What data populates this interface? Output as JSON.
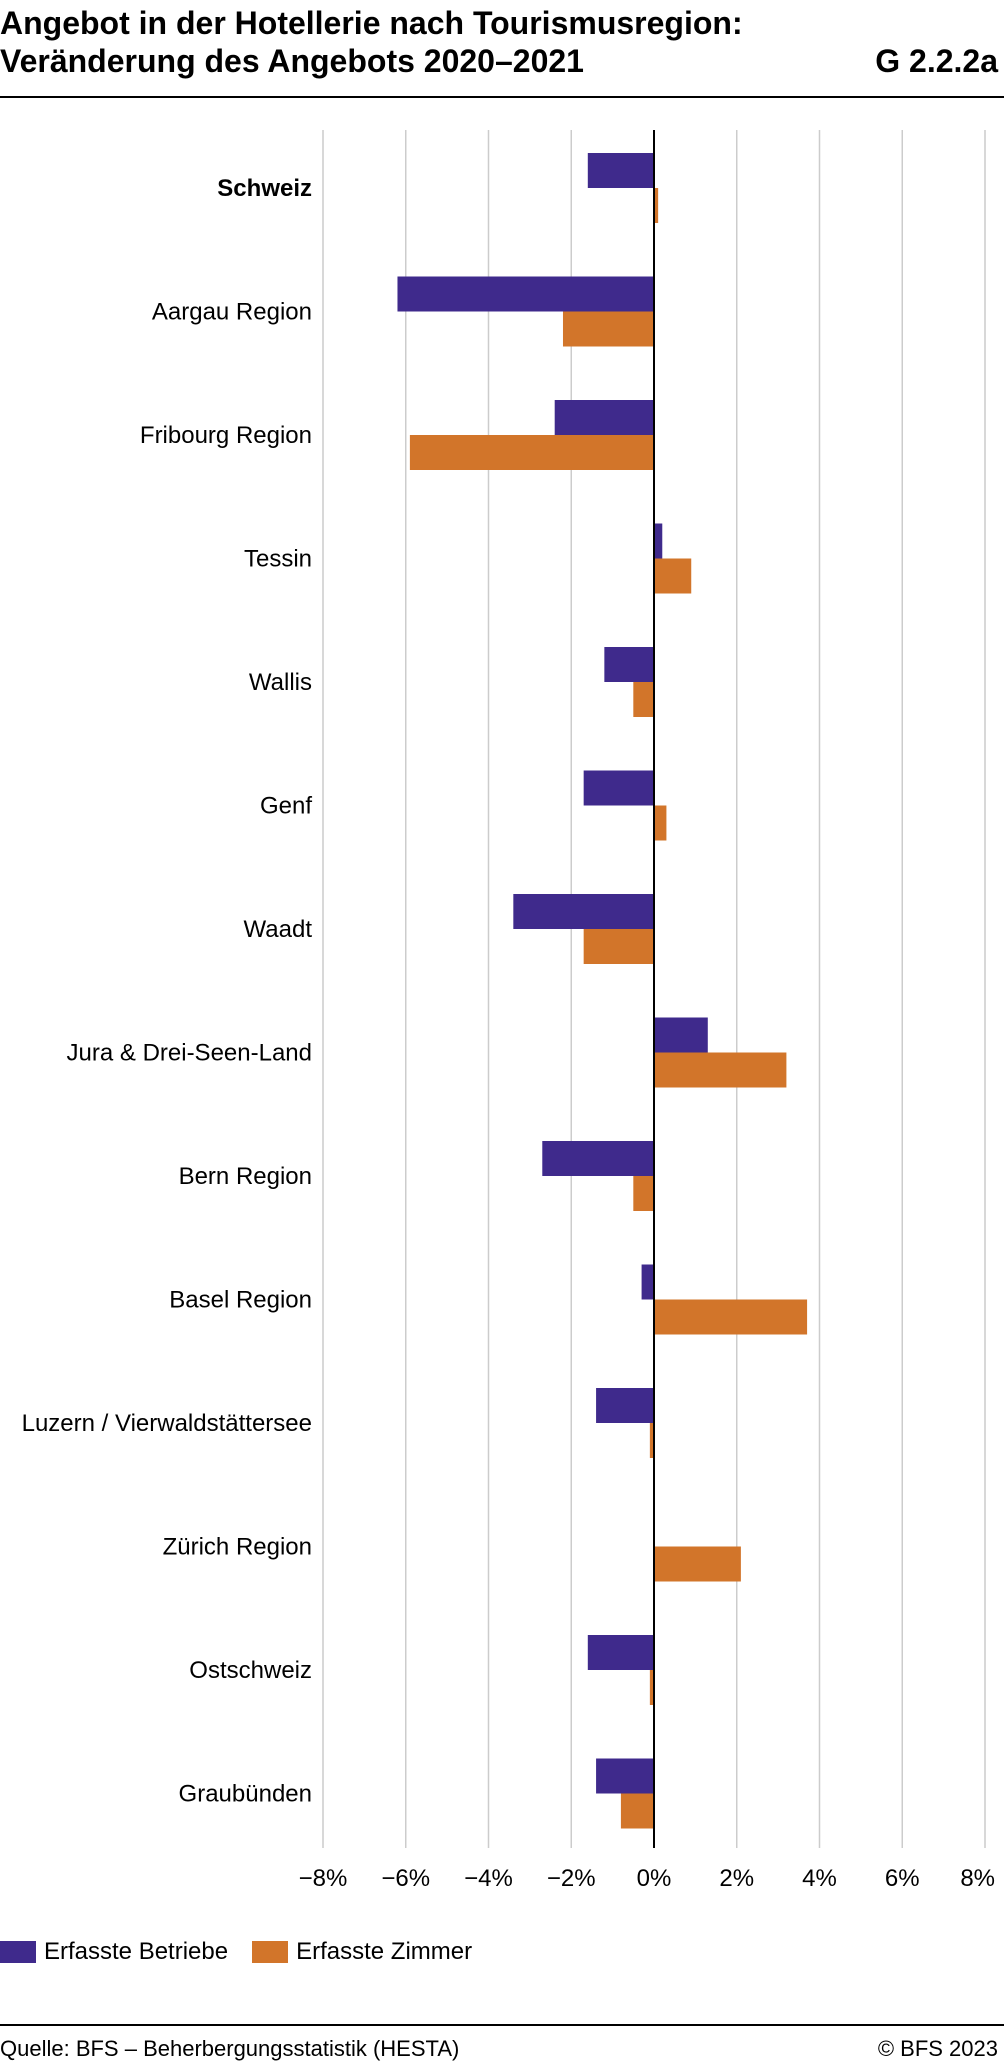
{
  "header": {
    "title_line1": "Angebot in der Hotellerie nach Tourismusregion:",
    "title_line2": "Veränderung des Angebots 2020–2021",
    "code": "G 2.2.2a"
  },
  "colors": {
    "betriebe": "#3f2a8c",
    "zimmer": "#d2752a",
    "grid": "#cccccc",
    "axis": "#000000"
  },
  "chart_data": {
    "type": "bar",
    "orientation": "horizontal",
    "categories": [
      "Schweiz",
      "Aargau Region",
      "Fribourg Region",
      "Tessin",
      "Wallis",
      "Genf",
      "Waadt",
      "Jura & Drei-Seen-Land",
      "Bern Region",
      "Basel Region",
      "Luzern / Vierwaldstättersee",
      "Zürich Region",
      "Ostschweiz",
      "Graubünden"
    ],
    "bold_category": "Schweiz",
    "series": [
      {
        "name": "Erfasste Betriebe",
        "values": [
          -1.6,
          -6.2,
          -2.4,
          0.2,
          -1.2,
          -1.7,
          -3.4,
          1.3,
          -2.7,
          -0.3,
          -1.4,
          0.0,
          -1.6,
          -1.4
        ]
      },
      {
        "name": "Erfasste Zimmer",
        "values": [
          0.1,
          -2.2,
          -5.9,
          0.9,
          -0.5,
          0.3,
          -1.7,
          3.2,
          -0.5,
          3.7,
          -0.1,
          2.1,
          -0.1,
          -0.8
        ]
      }
    ],
    "xlim": [
      -8,
      8
    ],
    "xticks": [
      "−8%",
      "−6%",
      "−4%",
      "−2%",
      "0%",
      "2%",
      "4%",
      "6%",
      "8%"
    ],
    "grid": true,
    "legend_position": "bottom-left"
  },
  "footer": {
    "source": "Quelle: BFS – Beherbergungsstatistik (HESTA)",
    "copyright": "© BFS 2023"
  }
}
